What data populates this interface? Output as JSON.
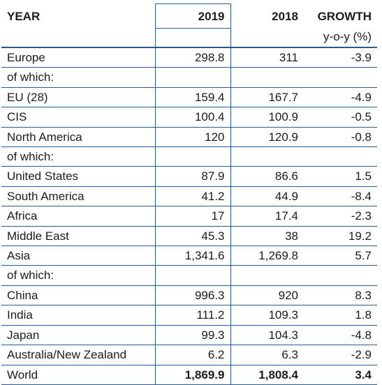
{
  "header": {
    "year_label": "YEAR",
    "col_2019": "2019",
    "col_2018": "2018",
    "col_growth": "GROWTH",
    "col_growth_sub": "y-o-y (%)"
  },
  "rows": [
    {
      "region": "Europe",
      "v2019": "298.8",
      "v2018": "311",
      "growth": "-3.9"
    },
    {
      "region": "of which:",
      "v2019": "",
      "v2018": "",
      "growth": ""
    },
    {
      "region": "EU (28)",
      "v2019": "159.4",
      "v2018": "167.7",
      "growth": "-4.9"
    },
    {
      "region": "CIS",
      "v2019": "100.4",
      "v2018": "100.9",
      "growth": "-0.5"
    },
    {
      "region": "North America",
      "v2019": "120",
      "v2018": "120.9",
      "growth": "-0.8"
    },
    {
      "region": "of which:",
      "v2019": "",
      "v2018": "",
      "growth": ""
    },
    {
      "region": "United States",
      "v2019": "87.9",
      "v2018": "86.6",
      "growth": "1.5"
    },
    {
      "region": "South America",
      "v2019": "41.2",
      "v2018": "44.9",
      "growth": "-8.4"
    },
    {
      "region": "Africa",
      "v2019": "17",
      "v2018": "17.4",
      "growth": "-2.3"
    },
    {
      "region": "Middle East",
      "v2019": "45.3",
      "v2018": "38",
      "growth": "19.2"
    },
    {
      "region": "Asia",
      "v2019": "1,341.6",
      "v2018": "1,269.8",
      "growth": "5.7"
    },
    {
      "region": "of which:",
      "v2019": "",
      "v2018": "",
      "growth": ""
    },
    {
      "region": "China",
      "v2019": "996.3",
      "v2018": "920",
      "growth": "8.3"
    },
    {
      "region": "India",
      "v2019": "111.2",
      "v2018": "109.3",
      "growth": "1.8"
    },
    {
      "region": "Japan",
      "v2019": "99.3",
      "v2018": "104.3",
      "growth": "-4.8"
    },
    {
      "region": "Australia/New Zealand",
      "v2019": "6.2",
      "v2018": "6.3",
      "growth": "-2.9"
    },
    {
      "region": "World",
      "v2019": "1,869.9",
      "v2018": "1,808.4",
      "growth": "3.4",
      "total": true
    }
  ],
  "colors": {
    "rule": "#2a5a8c",
    "text": "#1c1c1c"
  }
}
